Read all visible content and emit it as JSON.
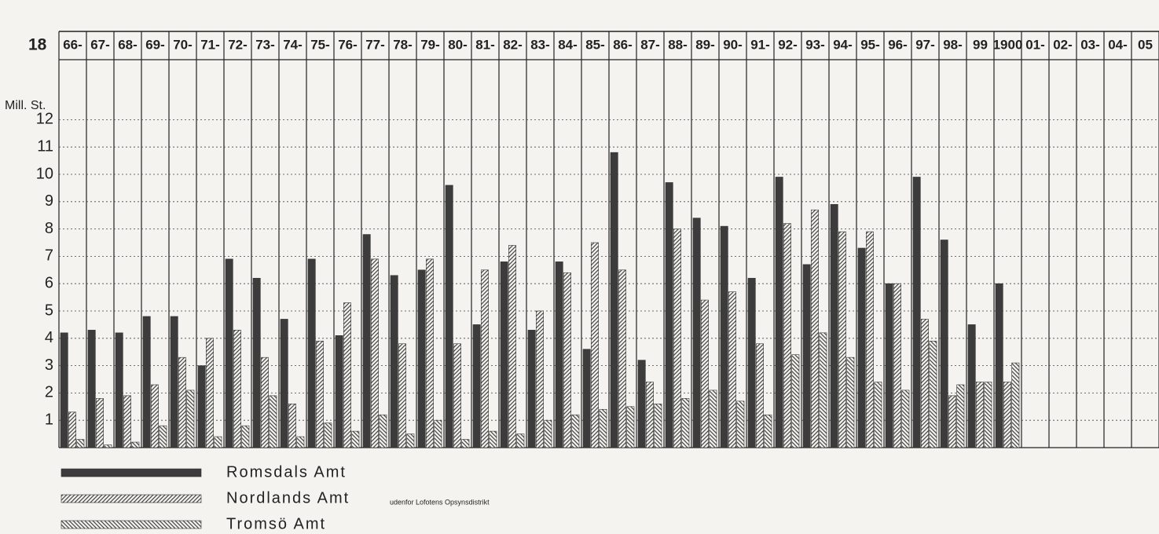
{
  "chart_data": {
    "type": "bar",
    "header_prefix": "18",
    "ylabel": "Mill. St.",
    "categories": [
      "66-",
      "67-",
      "68-",
      "69-",
      "70-",
      "71-",
      "72-",
      "73-",
      "74-",
      "75-",
      "76-",
      "77-",
      "78-",
      "79-",
      "80-",
      "81-",
      "82-",
      "83-",
      "84-",
      "85-",
      "86-",
      "87-",
      "88-",
      "89-",
      "90-",
      "91-",
      "92-",
      "93-",
      "94-",
      "95-",
      "96-",
      "97-",
      "98-",
      "99",
      "1900",
      "01-",
      "02-",
      "03-",
      "04-",
      "05"
    ],
    "series": [
      {
        "name": "Romsdals Amt",
        "color": "#3c3c3c",
        "pattern": "solid",
        "values": [
          4.2,
          4.3,
          4.2,
          4.8,
          4.8,
          3.0,
          6.9,
          6.2,
          4.7,
          6.9,
          4.1,
          7.8,
          6.3,
          6.5,
          9.6,
          4.5,
          6.8,
          4.3,
          6.8,
          3.6,
          10.8,
          3.2,
          9.7,
          8.4,
          8.1,
          6.2,
          9.9,
          6.7,
          8.9,
          7.3,
          6.0,
          9.9,
          7.6,
          4.5,
          6.0,
          null,
          null,
          null,
          null,
          null
        ]
      },
      {
        "name": "Nordlands Amt",
        "color": "#4a4a4a",
        "pattern": "hatch-right",
        "values": [
          1.3,
          1.8,
          1.9,
          2.3,
          3.3,
          4.0,
          4.3,
          3.3,
          1.6,
          3.9,
          5.3,
          6.9,
          3.8,
          6.9,
          3.8,
          6.5,
          7.4,
          5.0,
          6.4,
          7.5,
          6.5,
          2.4,
          8.0,
          5.4,
          5.7,
          3.8,
          8.2,
          8.7,
          7.9,
          7.9,
          6.0,
          4.7,
          1.9,
          2.4,
          2.4,
          null,
          null,
          null,
          null,
          null
        ]
      },
      {
        "name": "Tromsö Amt",
        "color": "#4a4a4a",
        "pattern": "hatch-left",
        "values": [
          0.3,
          0.1,
          0.2,
          0.8,
          2.1,
          0.4,
          0.8,
          1.9,
          0.4,
          0.9,
          0.6,
          1.2,
          0.5,
          1.0,
          0.3,
          0.6,
          0.5,
          1.0,
          1.2,
          1.4,
          1.5,
          1.6,
          1.8,
          2.1,
          1.7,
          1.2,
          3.4,
          4.2,
          3.3,
          2.4,
          2.1,
          3.9,
          2.3,
          2.4,
          3.1,
          null,
          null,
          null,
          null,
          null
        ]
      }
    ],
    "annotation": "udenfor Lofotens Opsynsdistrikt",
    "ylim": [
      0,
      13
    ],
    "yticks": [
      1,
      2,
      3,
      4,
      5,
      6,
      7,
      8,
      9,
      10,
      11,
      12
    ],
    "grid": true
  }
}
